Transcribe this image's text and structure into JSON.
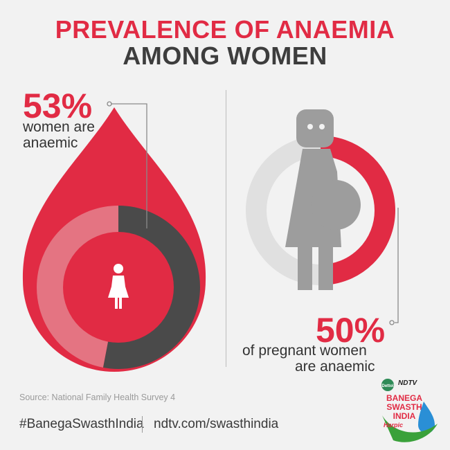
{
  "title": {
    "line1": "PREVALENCE OF ANAEMIA",
    "line2": "AMONG WOMEN"
  },
  "colors": {
    "accent": "#e12b44",
    "accent_light": "#e47482",
    "dark": "#4a4a4a",
    "grey": "#9d9d9d",
    "light_grey": "#e0e0e0",
    "background": "#f2f2f2"
  },
  "chart_data": [
    {
      "type": "pie",
      "categories": [
        "anaemic",
        "not anaemic"
      ],
      "values": [
        53,
        47
      ],
      "label": {
        "value": "53%",
        "caption_line1": "women are",
        "caption_line2": "anaemic"
      }
    },
    {
      "type": "pie",
      "categories": [
        "anaemic",
        "not anaemic"
      ],
      "values": [
        50,
        50
      ],
      "label": {
        "value": "50%",
        "caption_line1": "of pregnant women",
        "caption_line2": "are anaemic"
      }
    }
  ],
  "source": "Source: National Family Health Survey 4",
  "footer": {
    "hashtag": "#BanegaSwasthIndia",
    "url": "ndtv.com/swasthindia"
  },
  "logo": {
    "dettol": "Dettol",
    "ndtv": "NDTV",
    "line1": "BANEGA",
    "line2": "SWASTH",
    "line3": "INDIA",
    "harpic": "Harpic"
  },
  "icons": [
    "woman-icon",
    "pregnant-woman-icon",
    "blood-drop-icon"
  ]
}
